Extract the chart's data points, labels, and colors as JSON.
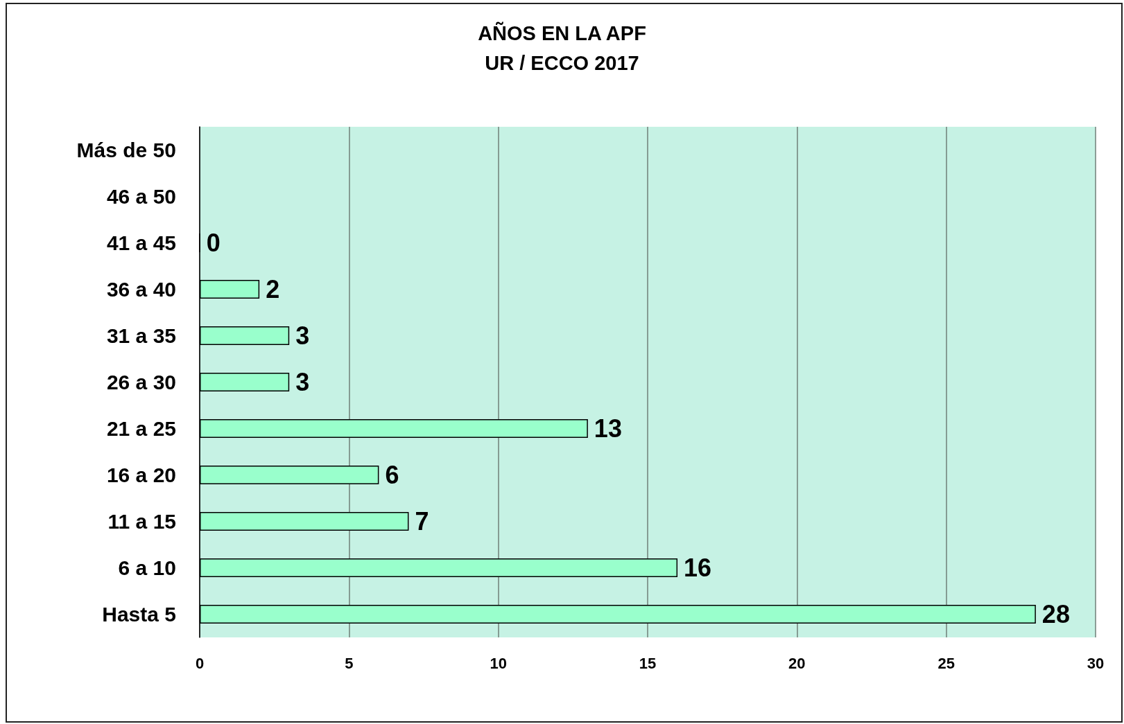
{
  "chart_data": {
    "type": "bar",
    "orientation": "horizontal",
    "title": "AÑOS EN LA APF",
    "subtitle": "UR / ECCO 2017",
    "categories": [
      "Más de 50",
      "46 a 50",
      "41 a 45",
      "36 a 40",
      "31 a 35",
      "26 a 30",
      "21 a 25",
      "16 a 20",
      "11 a 15",
      "6 a 10",
      "Hasta 5"
    ],
    "values": [
      null,
      null,
      0,
      2,
      3,
      3,
      13,
      6,
      7,
      16,
      28
    ],
    "color": "#99ffcc",
    "xlim": [
      0,
      30
    ],
    "xticks": [
      0,
      5,
      10,
      15,
      20,
      25,
      30
    ],
    "grid": "x",
    "data_labels": true
  }
}
